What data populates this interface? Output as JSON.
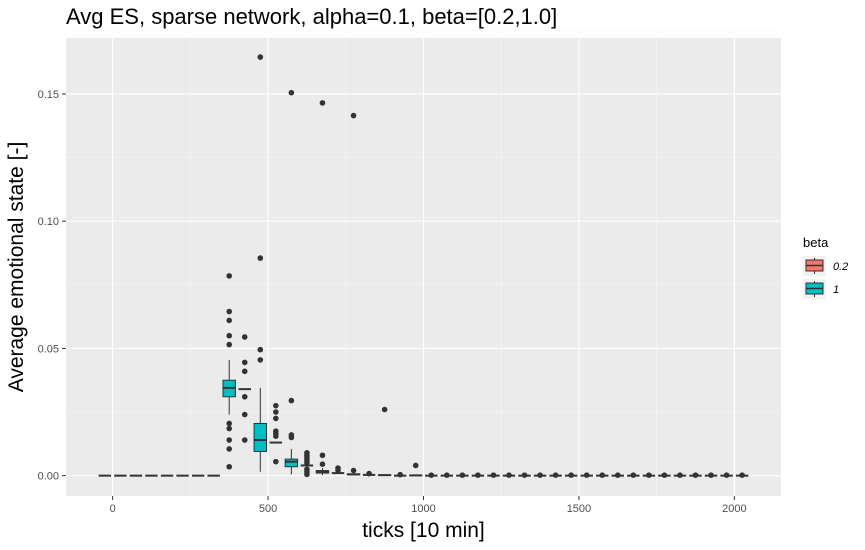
{
  "chart_data": {
    "type": "boxplot",
    "title": "Avg ES, sparse network, alpha=0.1, beta=[0.2,1.0]",
    "xlabel": "ticks [10 min]",
    "ylabel": "Average emotional state [-]",
    "xlim": [
      -150,
      2150
    ],
    "ylim": [
      -0.008,
      0.172
    ],
    "x_ticks": [
      0,
      500,
      1000,
      1500,
      2000
    ],
    "x_tick_labels": [
      "0",
      "500",
      "1000",
      "1500",
      "2000"
    ],
    "y_ticks": [
      0.0,
      0.05,
      0.1,
      0.15
    ],
    "y_tick_labels": [
      "0.00",
      "0.05",
      "0.10",
      "0.15"
    ],
    "grid": true,
    "legend": {
      "title": "beta",
      "position": "right",
      "entries": [
        {
          "label": "0.2",
          "color": "#F8766D"
        },
        {
          "label": "1",
          "color": "#00BFC4"
        }
      ]
    },
    "box_width": 40,
    "series": [
      {
        "name": "0.2",
        "color": "#F8766D",
        "boxes": [
          {
            "x": -25,
            "q1": 0,
            "median": 0,
            "q3": 0,
            "lo": 0,
            "hi": 0,
            "outliers": []
          },
          {
            "x": 25,
            "q1": 0,
            "median": 0,
            "q3": 0,
            "lo": 0,
            "hi": 0,
            "outliers": []
          },
          {
            "x": 75,
            "q1": 0,
            "median": 0,
            "q3": 0,
            "lo": 0,
            "hi": 0,
            "outliers": []
          },
          {
            "x": 125,
            "q1": 0,
            "median": 0,
            "q3": 0,
            "lo": 0,
            "hi": 0,
            "outliers": []
          },
          {
            "x": 175,
            "q1": 0,
            "median": 0,
            "q3": 0,
            "lo": 0,
            "hi": 0,
            "outliers": []
          },
          {
            "x": 225,
            "q1": 0,
            "median": 0,
            "q3": 0,
            "lo": 0,
            "hi": 0,
            "outliers": []
          },
          {
            "x": 275,
            "q1": 0,
            "median": 0,
            "q3": 0,
            "lo": 0,
            "hi": 0,
            "outliers": []
          },
          {
            "x": 325,
            "q1": 0,
            "median": 0,
            "q3": 0,
            "lo": 0,
            "hi": 0,
            "outliers": []
          },
          {
            "x": 425,
            "q1": 0.034,
            "median": 0.034,
            "q3": 0.034,
            "lo": 0.034,
            "hi": 0.034,
            "outliers": [
              0.0545,
              0.0445,
              0.041,
              0.031,
              0.024,
              0.014
            ]
          },
          {
            "x": 525,
            "q1": 0.013,
            "median": 0.013,
            "q3": 0.013,
            "lo": 0.013,
            "hi": 0.013,
            "outliers": [
              0.0275,
              0.025,
              0.0225,
              0.0175,
              0.0165,
              0.0155,
              0.0055
            ]
          },
          {
            "x": 625,
            "q1": 0.004,
            "median": 0.004,
            "q3": 0.004,
            "lo": 0.004,
            "hi": 0.004,
            "outliers": [
              0.009,
              0.008,
              0.007,
              0.006,
              0.005,
              0.0025,
              0.0015,
              0.0005
            ]
          },
          {
            "x": 725,
            "q1": 0.001,
            "median": 0.001,
            "q3": 0.001,
            "lo": 0.001,
            "hi": 0.001,
            "outliers": [
              0.003,
              0.002
            ]
          },
          {
            "x": 825,
            "q1": 0.0003,
            "median": 0.0003,
            "q3": 0.0003,
            "lo": 0.0003,
            "hi": 0.0003,
            "outliers": [
              0.0008
            ]
          },
          {
            "x": 925,
            "q1": 0,
            "median": 0,
            "q3": 0,
            "lo": 0,
            "hi": 0,
            "outliers": [
              0.0004
            ]
          },
          {
            "x": 1025,
            "q1": 0,
            "median": 0,
            "q3": 0,
            "lo": 0,
            "hi": 0,
            "outliers": [
              0.0002
            ]
          },
          {
            "x": 1125,
            "q1": 0,
            "median": 0,
            "q3": 0,
            "lo": 0,
            "hi": 0,
            "outliers": [
              0.0002
            ]
          },
          {
            "x": 1225,
            "q1": 0,
            "median": 0,
            "q3": 0,
            "lo": 0,
            "hi": 0,
            "outliers": [
              0.0002
            ]
          },
          {
            "x": 1325,
            "q1": 0,
            "median": 0,
            "q3": 0,
            "lo": 0,
            "hi": 0,
            "outliers": [
              0.0002
            ]
          },
          {
            "x": 1425,
            "q1": 0,
            "median": 0,
            "q3": 0,
            "lo": 0,
            "hi": 0,
            "outliers": [
              0.0002
            ]
          },
          {
            "x": 1525,
            "q1": 0,
            "median": 0,
            "q3": 0,
            "lo": 0,
            "hi": 0,
            "outliers": [
              0.0002
            ]
          },
          {
            "x": 1625,
            "q1": 0,
            "median": 0,
            "q3": 0,
            "lo": 0,
            "hi": 0,
            "outliers": [
              0.0002
            ]
          },
          {
            "x": 1725,
            "q1": 0,
            "median": 0,
            "q3": 0,
            "lo": 0,
            "hi": 0,
            "outliers": [
              0.0002
            ]
          },
          {
            "x": 1825,
            "q1": 0,
            "median": 0,
            "q3": 0,
            "lo": 0,
            "hi": 0,
            "outliers": [
              0.0002
            ]
          },
          {
            "x": 1925,
            "q1": 0,
            "median": 0,
            "q3": 0,
            "lo": 0,
            "hi": 0,
            "outliers": [
              0.0002
            ]
          },
          {
            "x": 2025,
            "q1": 0,
            "median": 0,
            "q3": 0,
            "lo": 0,
            "hi": 0,
            "outliers": [
              0.0002
            ]
          }
        ]
      },
      {
        "name": "1",
        "color": "#00BFC4",
        "boxes": [
          {
            "x": 375,
            "q1": 0.031,
            "median": 0.0345,
            "q3": 0.0375,
            "lo": 0.024,
            "hi": 0.0455,
            "outliers": [
              0.0785,
              0.0645,
              0.061,
              0.055,
              0.0515,
              0.0205,
              0.0185,
              0.014,
              0.0105,
              0.0035
            ]
          },
          {
            "x": 475,
            "q1": 0.0095,
            "median": 0.014,
            "q3": 0.0205,
            "lo": 0.0015,
            "hi": 0.0345,
            "outliers": [
              0.1645,
              0.0855,
              0.0495,
              0.0455
            ]
          },
          {
            "x": 575,
            "q1": 0.0035,
            "median": 0.0055,
            "q3": 0.0065,
            "lo": 0.0005,
            "hi": 0.0105,
            "outliers": [
              0.1505,
              0.0295,
              0.016,
              0.015
            ]
          },
          {
            "x": 675,
            "q1": 0.001,
            "median": 0.0015,
            "q3": 0.002,
            "lo": 0.0002,
            "hi": 0.003,
            "outliers": [
              0.1465,
              0.008,
              0.0045
            ]
          },
          {
            "x": 775,
            "q1": 0.0003,
            "median": 0.0005,
            "q3": 0.0007,
            "lo": 0.0001,
            "hi": 0.0009,
            "outliers": [
              0.1415,
              0.002
            ]
          },
          {
            "x": 875,
            "q1": 0.0001,
            "median": 0.0002,
            "q3": 0.0003,
            "lo": 0,
            "hi": 0.0004,
            "outliers": [
              0.026
            ]
          },
          {
            "x": 975,
            "q1": 0,
            "median": 0.0001,
            "q3": 0.0001,
            "lo": 0,
            "hi": 0.0002,
            "outliers": [
              0.004
            ]
          },
          {
            "x": 1075,
            "q1": 0,
            "median": 0,
            "q3": 0,
            "lo": 0,
            "hi": 0,
            "outliers": [
              0.0002
            ]
          },
          {
            "x": 1175,
            "q1": 0,
            "median": 0,
            "q3": 0,
            "lo": 0,
            "hi": 0,
            "outliers": [
              0.0002
            ]
          },
          {
            "x": 1275,
            "q1": 0,
            "median": 0,
            "q3": 0,
            "lo": 0,
            "hi": 0,
            "outliers": [
              0.0002
            ]
          },
          {
            "x": 1375,
            "q1": 0,
            "median": 0,
            "q3": 0,
            "lo": 0,
            "hi": 0,
            "outliers": [
              0.0002
            ]
          },
          {
            "x": 1475,
            "q1": 0,
            "median": 0,
            "q3": 0,
            "lo": 0,
            "hi": 0,
            "outliers": [
              0.0002
            ]
          },
          {
            "x": 1575,
            "q1": 0,
            "median": 0,
            "q3": 0,
            "lo": 0,
            "hi": 0,
            "outliers": [
              0.0002
            ]
          },
          {
            "x": 1675,
            "q1": 0,
            "median": 0,
            "q3": 0,
            "lo": 0,
            "hi": 0,
            "outliers": [
              0.0002
            ]
          },
          {
            "x": 1775,
            "q1": 0,
            "median": 0,
            "q3": 0,
            "lo": 0,
            "hi": 0,
            "outliers": [
              0.0002
            ]
          },
          {
            "x": 1875,
            "q1": 0,
            "median": 0,
            "q3": 0,
            "lo": 0,
            "hi": 0,
            "outliers": [
              0.0002
            ]
          },
          {
            "x": 1975,
            "q1": 0,
            "median": 0,
            "q3": 0,
            "lo": 0,
            "hi": 0,
            "outliers": [
              0.0002
            ]
          }
        ]
      }
    ]
  }
}
